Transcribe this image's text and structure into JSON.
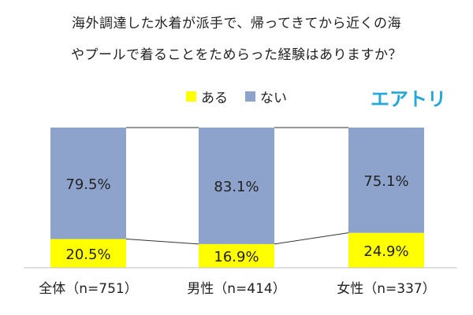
{
  "title_lines": [
    "海外調達した水着が派手で、帰ってきてから近くの海",
    "やプールで着ることをためらった経験はありますか？"
  ],
  "logo_text": "エアトリ",
  "colors": {
    "yes": "#ffff00",
    "no": "#8ea3cc",
    "logo": "#23a9d8"
  },
  "chart_data": {
    "type": "bar",
    "stacked": true,
    "categories": [
      "全体（n=751）",
      "男性（n=414）",
      "女性（n=337）"
    ],
    "series": [
      {
        "name": "ある",
        "values": [
          20.5,
          16.9,
          24.9
        ],
        "labels": [
          "20.5%",
          "16.9%",
          "24.9%"
        ]
      },
      {
        "name": "ない",
        "values": [
          79.5,
          83.1,
          75.1
        ],
        "labels": [
          "79.5%",
          "83.1%",
          "75.1%"
        ]
      }
    ],
    "ylim": [
      0,
      100
    ],
    "legend_position": "top",
    "grid": false,
    "series_lines": true
  }
}
